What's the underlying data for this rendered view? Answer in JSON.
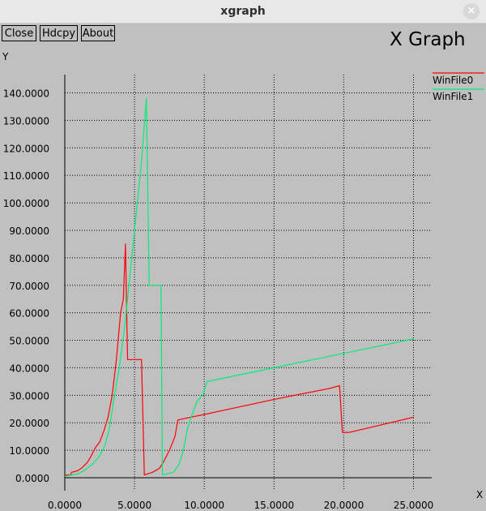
{
  "window": {
    "title": "xgraph",
    "close_glyph": "×"
  },
  "toolbar": {
    "close_label": "Close",
    "hdcpy_label": "Hdcpy",
    "about_label": "About"
  },
  "plot_title": "X Graph",
  "chart_data": {
    "type": "line",
    "title": "X Graph",
    "xlabel": "X",
    "ylabel": "Y",
    "xlim": [
      0,
      25
    ],
    "ylim": [
      0,
      140
    ],
    "grid": true,
    "grid_style": "dotted",
    "legend_position": "top-right",
    "x_ticks": [
      0,
      5,
      10,
      15,
      20,
      25
    ],
    "y_ticks": [
      0,
      10,
      20,
      30,
      40,
      50,
      60,
      70,
      80,
      90,
      100,
      110,
      120,
      130,
      140
    ],
    "x_tick_labels": [
      "0.0000",
      "5.0000",
      "10.0000",
      "15.0000",
      "20.0000",
      "25.0000"
    ],
    "y_tick_labels": [
      "0.0000",
      "10.0000",
      "20.0000",
      "30.0000",
      "40.0000",
      "50.0000",
      "60.0000",
      "70.0000",
      "80.0000",
      "90.0000",
      "100.0000",
      "110.0000",
      "120.0000",
      "130.0000",
      "140.0000"
    ],
    "series": [
      {
        "name": "WinFile0",
        "color": "#ff0000",
        "points": [
          [
            0,
            1
          ],
          [
            0.4,
            1
          ],
          [
            0.5,
            2
          ],
          [
            0.9,
            2.5
          ],
          [
            1.2,
            3.5
          ],
          [
            1.6,
            5.5
          ],
          [
            1.9,
            8
          ],
          [
            2.2,
            11
          ],
          [
            2.5,
            13
          ],
          [
            2.8,
            17
          ],
          [
            3.1,
            22
          ],
          [
            3.4,
            30
          ],
          [
            3.7,
            43
          ],
          [
            4.0,
            60
          ],
          [
            4.2,
            65
          ],
          [
            4.35,
            85
          ],
          [
            4.5,
            43
          ],
          [
            5.5,
            43
          ],
          [
            5.7,
            1
          ],
          [
            6.3,
            2
          ],
          [
            6.8,
            3.5
          ],
          [
            7.1,
            6
          ],
          [
            7.5,
            10
          ],
          [
            7.9,
            15
          ],
          [
            8.1,
            21
          ],
          [
            9,
            22
          ],
          [
            10,
            23
          ],
          [
            15,
            28.5
          ],
          [
            19,
            32.5
          ],
          [
            19.7,
            33.5
          ],
          [
            19.9,
            16.5
          ],
          [
            20.4,
            16.5
          ],
          [
            25,
            22
          ]
        ]
      },
      {
        "name": "WinFile1",
        "color": "#00ee77",
        "points": [
          [
            0,
            0.5
          ],
          [
            0.5,
            1
          ],
          [
            1,
            1.5
          ],
          [
            1.5,
            3
          ],
          [
            2,
            5
          ],
          [
            2.5,
            8
          ],
          [
            2.9,
            12
          ],
          [
            3.2,
            18
          ],
          [
            3.5,
            28
          ],
          [
            3.9,
            40
          ],
          [
            4.3,
            55
          ],
          [
            4.7,
            75
          ],
          [
            5.1,
            95
          ],
          [
            5.5,
            115
          ],
          [
            5.85,
            138
          ],
          [
            6.05,
            70
          ],
          [
            6.9,
            70
          ],
          [
            7.0,
            1
          ],
          [
            7.4,
            1.5
          ],
          [
            7.8,
            2
          ],
          [
            8.2,
            5
          ],
          [
            8.5,
            10
          ],
          [
            8.8,
            18
          ],
          [
            9.2,
            24
          ],
          [
            9.5,
            28
          ],
          [
            9.9,
            30
          ],
          [
            10.2,
            35
          ],
          [
            15,
            40
          ],
          [
            25,
            50.5
          ]
        ]
      }
    ]
  }
}
